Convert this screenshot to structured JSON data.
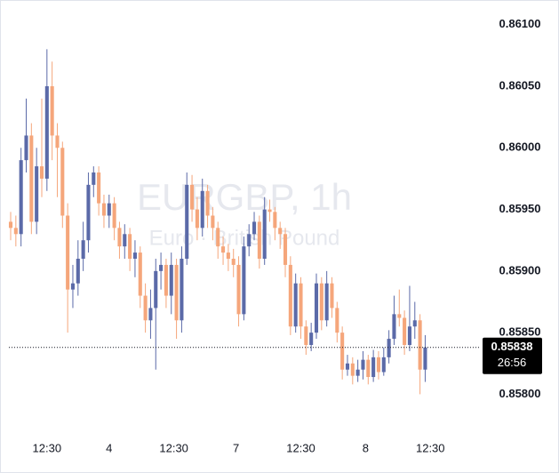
{
  "chart_data": {
    "type": "candlestick",
    "watermark_title": "EURGBP, 1h",
    "watermark_subtitle": "Euro · British Pound",
    "up_color": "#5b6aa8",
    "down_color": "#f5a67b",
    "x": [
      0,
      1,
      2,
      3,
      4,
      5,
      6,
      7,
      8,
      9,
      10,
      11,
      12,
      13,
      14,
      15,
      16,
      17,
      18,
      19,
      20,
      21,
      22,
      23,
      24,
      25,
      26,
      27,
      28,
      29,
      30,
      31,
      32,
      33,
      34,
      35,
      36,
      37,
      38,
      39,
      40,
      41,
      42,
      43,
      44,
      45,
      46,
      47,
      48,
      49,
      50,
      51,
      52,
      53,
      54,
      55,
      56,
      57,
      58,
      59,
      60,
      61,
      62,
      63,
      64,
      65,
      66,
      67,
      68,
      69,
      70,
      71,
      72,
      73,
      74,
      75,
      76,
      77,
      78,
      79,
      80
    ],
    "open": [
      0.8594,
      0.85935,
      0.8593,
      0.8599,
      0.8601,
      0.8594,
      0.85985,
      0.85975,
      0.8605,
      0.8601,
      0.86,
      0.85945,
      0.85885,
      0.8589,
      0.8591,
      0.85925,
      0.8597,
      0.8598,
      0.85955,
      0.85945,
      0.85955,
      0.85935,
      0.8592,
      0.8593,
      0.8591,
      0.85915,
      0.8588,
      0.8586,
      0.8587,
      0.859,
      0.85905,
      0.8588,
      0.85905,
      0.8586,
      0.8591,
      0.8597,
      0.8595,
      0.85935,
      0.85965,
      0.85945,
      0.85935,
      0.8592,
      0.85915,
      0.8591,
      0.85905,
      0.85865,
      0.8592,
      0.8593,
      0.8594,
      0.8591,
      0.8595,
      0.85948,
      0.85935,
      0.8593,
      0.85905,
      0.85855,
      0.8589,
      0.85855,
      0.8584,
      0.8585,
      0.8589,
      0.8586,
      0.8589,
      0.8587,
      0.8585,
      0.8582,
      0.85825,
      0.85815,
      0.8582,
      0.85828,
      0.85814,
      0.8583,
      0.85818,
      0.8583,
      0.85845,
      0.85865,
      0.85862,
      0.8584,
      0.85855,
      0.8586,
      0.8582
    ],
    "high": [
      0.85948,
      0.85945,
      0.86,
      0.8604,
      0.8602,
      0.86,
      0.8604,
      0.8608,
      0.8607,
      0.8602,
      0.86005,
      0.85955,
      0.85905,
      0.85925,
      0.8594,
      0.8598,
      0.85985,
      0.85985,
      0.85962,
      0.85962,
      0.8596,
      0.8594,
      0.85938,
      0.85935,
      0.85925,
      0.8592,
      0.8589,
      0.85885,
      0.8591,
      0.85915,
      0.8591,
      0.85915,
      0.8591,
      0.8592,
      0.8598,
      0.85978,
      0.8596,
      0.85975,
      0.8597,
      0.85952,
      0.8594,
      0.85928,
      0.85922,
      0.85918,
      0.85912,
      0.85928,
      0.85938,
      0.85948,
      0.85945,
      0.8596,
      0.85958,
      0.85952,
      0.8594,
      0.85935,
      0.85912,
      0.85898,
      0.85895,
      0.8586,
      0.85858,
      0.85898,
      0.85895,
      0.859,
      0.85895,
      0.85875,
      0.85855,
      0.85832,
      0.8583,
      0.85828,
      0.85835,
      0.85832,
      0.85836,
      0.85835,
      0.85838,
      0.85852,
      0.8588,
      0.85885,
      0.85868,
      0.85888,
      0.85875,
      0.85865,
      0.85848
    ],
    "low": [
      0.85925,
      0.8592,
      0.8592,
      0.8598,
      0.8593,
      0.8593,
      0.8596,
      0.85965,
      0.8599,
      0.8596,
      0.85935,
      0.8585,
      0.8587,
      0.8588,
      0.859,
      0.85915,
      0.8596,
      0.85945,
      0.85935,
      0.85935,
      0.85925,
      0.8591,
      0.8591,
      0.859,
      0.85895,
      0.8587,
      0.8585,
      0.85845,
      0.8582,
      0.85885,
      0.8587,
      0.85865,
      0.85845,
      0.8585,
      0.85905,
      0.8594,
      0.85925,
      0.85928,
      0.85935,
      0.85925,
      0.8591,
      0.85905,
      0.859,
      0.85895,
      0.85855,
      0.8586,
      0.85912,
      0.85925,
      0.85902,
      0.85905,
      0.8594,
      0.85925,
      0.85918,
      0.85895,
      0.85848,
      0.8585,
      0.85845,
      0.85832,
      0.85835,
      0.85845,
      0.85852,
      0.85855,
      0.85862,
      0.85842,
      0.85812,
      0.85815,
      0.85808,
      0.8581,
      0.85812,
      0.85808,
      0.8581,
      0.85812,
      0.85815,
      0.85825,
      0.8584,
      0.85855,
      0.85832,
      0.85835,
      0.85845,
      0.858,
      0.8581
    ],
    "close": [
      0.85935,
      0.8593,
      0.8599,
      0.8601,
      0.8594,
      0.85985,
      0.85975,
      0.8605,
      0.8601,
      0.86,
      0.85945,
      0.85885,
      0.8589,
      0.8591,
      0.85925,
      0.8597,
      0.8598,
      0.85955,
      0.85945,
      0.85955,
      0.85935,
      0.8592,
      0.8593,
      0.8591,
      0.85915,
      0.8588,
      0.8586,
      0.8587,
      0.859,
      0.85905,
      0.8588,
      0.85905,
      0.8586,
      0.8591,
      0.8597,
      0.8595,
      0.85935,
      0.85965,
      0.85945,
      0.85935,
      0.8592,
      0.85915,
      0.8591,
      0.85905,
      0.85865,
      0.8592,
      0.8593,
      0.8594,
      0.8591,
      0.8595,
      0.85948,
      0.85935,
      0.8593,
      0.85905,
      0.85855,
      0.8589,
      0.85855,
      0.8584,
      0.8585,
      0.8589,
      0.8586,
      0.8589,
      0.8587,
      0.8585,
      0.8582,
      0.85825,
      0.85815,
      0.8582,
      0.85828,
      0.85814,
      0.8583,
      0.85818,
      0.8583,
      0.85845,
      0.85865,
      0.85862,
      0.8584,
      0.85855,
      0.8586,
      0.8582,
      0.85838
    ],
    "xlim": [
      -2.06,
      90.56
    ],
    "xticks": [
      {
        "value": 7,
        "label": "12:30"
      },
      {
        "value": 19,
        "label": "4"
      },
      {
        "value": 31.5,
        "label": "12:30"
      },
      {
        "value": 43.5,
        "label": "7"
      },
      {
        "value": 56,
        "label": "12:30"
      },
      {
        "value": 68.5,
        "label": "8"
      },
      {
        "value": 81,
        "label": "12:30"
      }
    ],
    "ylim": [
      0.8577,
      0.8612
    ],
    "yticks": [
      {
        "value": 0.861,
        "label": "0.86100"
      },
      {
        "value": 0.8605,
        "label": "0.86050"
      },
      {
        "value": 0.86,
        "label": "0.86000"
      },
      {
        "value": 0.8595,
        "label": "0.85950"
      },
      {
        "value": 0.859,
        "label": "0.85900"
      },
      {
        "value": 0.8585,
        "label": "0.85850"
      },
      {
        "value": 0.858,
        "label": "0.85800"
      }
    ],
    "last_price": 0.85838,
    "countdown": "26:56"
  }
}
